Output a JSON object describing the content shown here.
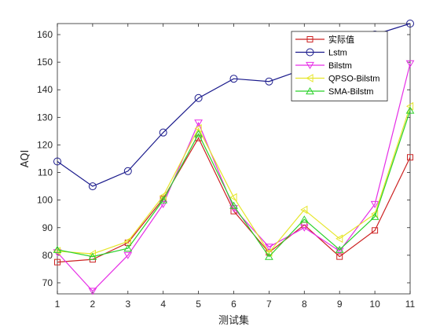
{
  "chart_data": {
    "type": "line",
    "xlabel": "测试集",
    "ylabel": "AQI",
    "x": [
      1,
      2,
      3,
      4,
      5,
      6,
      7,
      8,
      9,
      10,
      11
    ],
    "xlim": [
      1,
      11
    ],
    "ylim": [
      66,
      164
    ],
    "yticks": [
      70,
      80,
      90,
      100,
      110,
      120,
      130,
      140,
      150,
      160
    ],
    "grid": false,
    "legend_position": "top-right",
    "series": [
      {
        "name": "实际值",
        "color": "#cc2222",
        "marker": "square",
        "values": [
          77.5,
          78.5,
          84.5,
          100.5,
          122.5,
          96,
          81,
          91,
          79.5,
          89,
          115.5
        ]
      },
      {
        "name": "Lstm",
        "color": "#1a1a8c",
        "marker": "circle",
        "values": [
          114,
          105,
          110.5,
          124.5,
          137,
          144,
          143,
          147.5,
          152,
          160,
          164
        ]
      },
      {
        "name": "Bilstm",
        "color": "#e62ee6",
        "marker": "triangle-down",
        "values": [
          81,
          67,
          80,
          98.5,
          128,
          97,
          83,
          90,
          81.5,
          98.5,
          149.5
        ]
      },
      {
        "name": "QPSO-Bilstm",
        "color": "#e6e62a",
        "marker": "triangle-left",
        "values": [
          81.5,
          80.5,
          85,
          101.5,
          126,
          101,
          81,
          96.5,
          86,
          95,
          134
        ]
      },
      {
        "name": "SMA-Bilstm",
        "color": "#2ad12a",
        "marker": "triangle-up",
        "values": [
          82,
          79.5,
          82.5,
          100,
          124,
          98,
          79.5,
          93,
          82,
          94,
          132.5
        ]
      }
    ]
  }
}
